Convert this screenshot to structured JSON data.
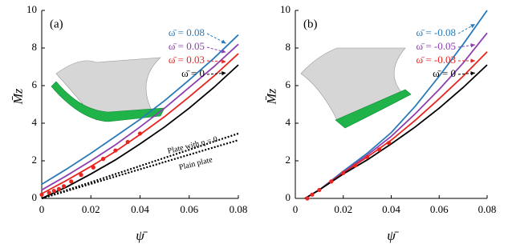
{
  "chart_data": [
    {
      "type": "line",
      "panel_label": "(a)",
      "xlabel": "ψ̄",
      "ylabel": "M̄z",
      "xlim": [
        0,
        0.08
      ],
      "ylim": [
        0,
        10
      ],
      "xticks": [
        0,
        0.02,
        0.04,
        0.06,
        0.08
      ],
      "yticks": [
        0,
        2,
        4,
        6,
        8,
        10
      ],
      "series": [
        {
          "name": "ω̄ = 0.08",
          "color": "#2a7ab9",
          "x": [
            0,
            0.01,
            0.02,
            0.03,
            0.04,
            0.05,
            0.06,
            0.07,
            0.08
          ],
          "values": [
            0.75,
            1.55,
            2.4,
            3.3,
            4.2,
            5.2,
            6.3,
            7.45,
            8.7
          ]
        },
        {
          "name": "ω̄ = 0.05",
          "color": "#8e3fb0",
          "x": [
            0,
            0.01,
            0.02,
            0.03,
            0.04,
            0.05,
            0.06,
            0.07,
            0.08
          ],
          "values": [
            0.45,
            1.2,
            2.0,
            2.85,
            3.8,
            4.8,
            5.9,
            7.0,
            8.2
          ]
        },
        {
          "name": "ω̄ = 0.03",
          "color": "#e8251f",
          "x": [
            0,
            0.01,
            0.02,
            0.03,
            0.04,
            0.05,
            0.06,
            0.07,
            0.08
          ],
          "values": [
            0.25,
            0.95,
            1.7,
            2.5,
            3.4,
            4.35,
            5.4,
            6.5,
            7.7
          ]
        },
        {
          "name": "ω̄ = 0",
          "color": "#000000",
          "x": [
            0,
            0.01,
            0.02,
            0.03,
            0.04,
            0.05,
            0.06,
            0.07,
            0.08
          ],
          "values": [
            0,
            0.6,
            1.3,
            2.05,
            2.9,
            3.8,
            4.8,
            5.9,
            7.1
          ]
        },
        {
          "name": "Plate with η = 0",
          "color": "#000000",
          "style": "dotted",
          "x": [
            0,
            0.08
          ],
          "values": [
            0,
            3.45
          ]
        },
        {
          "name": "Plain plate",
          "color": "#000000",
          "style": "dotted",
          "x": [
            0,
            0.08
          ],
          "values": [
            0,
            3.1
          ]
        },
        {
          "color": "#e8251f",
          "style": "dots",
          "x": [
            0,
            0.003,
            0.005,
            0.007,
            0.009,
            0.012,
            0.016,
            0.021,
            0.025,
            0.03,
            0.035,
            0.04
          ],
          "values": [
            0.2,
            0.3,
            0.4,
            0.5,
            0.65,
            0.9,
            1.25,
            1.65,
            2.1,
            2.55,
            3.0,
            3.45
          ]
        }
      ]
    },
    {
      "type": "line",
      "panel_label": "(b)",
      "xlabel": "ψ̄",
      "ylabel": "M̄z",
      "xlim": [
        0,
        0.08
      ],
      "ylim": [
        0,
        10
      ],
      "xticks": [
        0,
        0.02,
        0.04,
        0.06,
        0.08
      ],
      "yticks": [
        0,
        2,
        4,
        6,
        8,
        10
      ],
      "series": [
        {
          "name": "ω̄ = -0.08",
          "color": "#2a7ab9",
          "x": [
            0.004,
            0.01,
            0.02,
            0.03,
            0.04,
            0.05,
            0.06,
            0.07,
            0.08
          ],
          "values": [
            0,
            0.45,
            1.45,
            2.4,
            3.5,
            4.9,
            6.5,
            8.2,
            10
          ]
        },
        {
          "name": "ω̄ = -0.05",
          "color": "#8e3fb0",
          "x": [
            0.004,
            0.01,
            0.02,
            0.03,
            0.04,
            0.05,
            0.06,
            0.07,
            0.08
          ],
          "values": [
            0,
            0.45,
            1.4,
            2.3,
            3.3,
            4.5,
            5.8,
            7.2,
            8.8
          ]
        },
        {
          "name": "ω̄ = -0.03",
          "color": "#e8251f",
          "x": [
            0.004,
            0.01,
            0.02,
            0.03,
            0.04,
            0.05,
            0.06,
            0.07,
            0.08
          ],
          "values": [
            0,
            0.45,
            1.35,
            2.2,
            3.1,
            4.15,
            5.3,
            6.5,
            7.8
          ]
        },
        {
          "name": "ω̄ = 0",
          "color": "#000000",
          "x": [
            0.004,
            0.01,
            0.02,
            0.03,
            0.04,
            0.05,
            0.06,
            0.07,
            0.08
          ],
          "values": [
            0,
            0.45,
            1.3,
            2.05,
            2.9,
            3.8,
            4.8,
            5.9,
            7.1
          ]
        },
        {
          "color": "#e8251f",
          "style": "dots",
          "x": [
            0.005,
            0.007,
            0.01,
            0.015,
            0.02,
            0.025,
            0.03,
            0.035,
            0.039
          ],
          "values": [
            0,
            0.2,
            0.45,
            0.9,
            1.35,
            1.75,
            2.2,
            2.6,
            2.95
          ]
        }
      ]
    }
  ]
}
